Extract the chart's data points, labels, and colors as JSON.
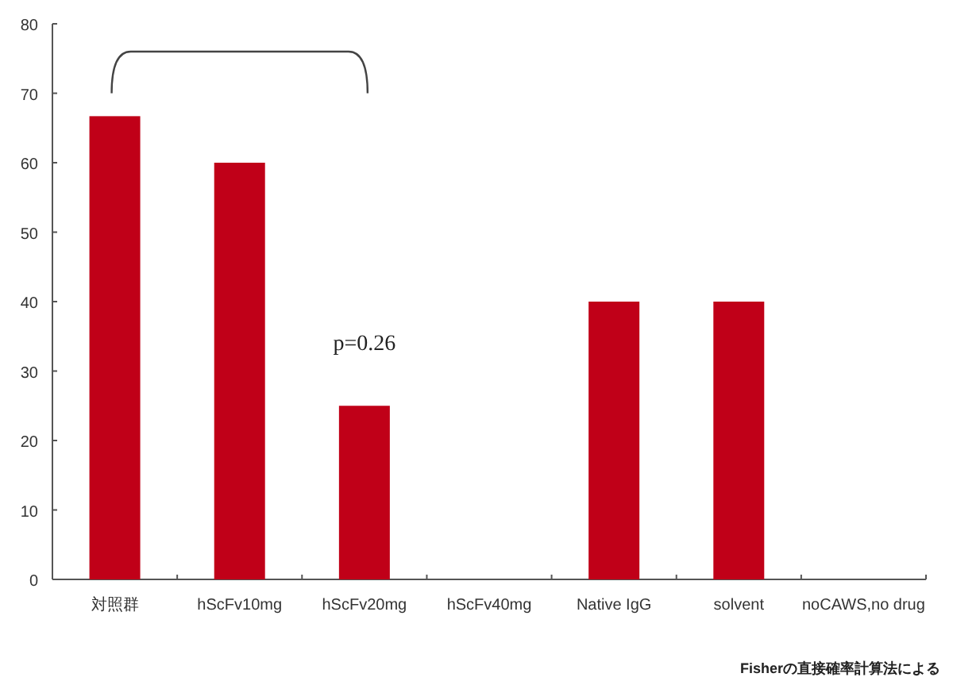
{
  "chart_data": {
    "type": "bar",
    "categories": [
      "対照群",
      "hScFv10mg",
      "hScFv20mg",
      "hScFv40mg",
      "Native IgG",
      "solvent",
      "noCAWS,no drug"
    ],
    "values": [
      66.7,
      60,
      25,
      0,
      40,
      40,
      0
    ],
    "color": "#c00018",
    "ylim": [
      0,
      80
    ],
    "yticks": [
      0,
      10,
      20,
      30,
      40,
      50,
      60,
      70,
      80
    ],
    "grid": false,
    "annotations": [
      "p=0.26",
      "Fisherの直接確率計算法による"
    ]
  }
}
